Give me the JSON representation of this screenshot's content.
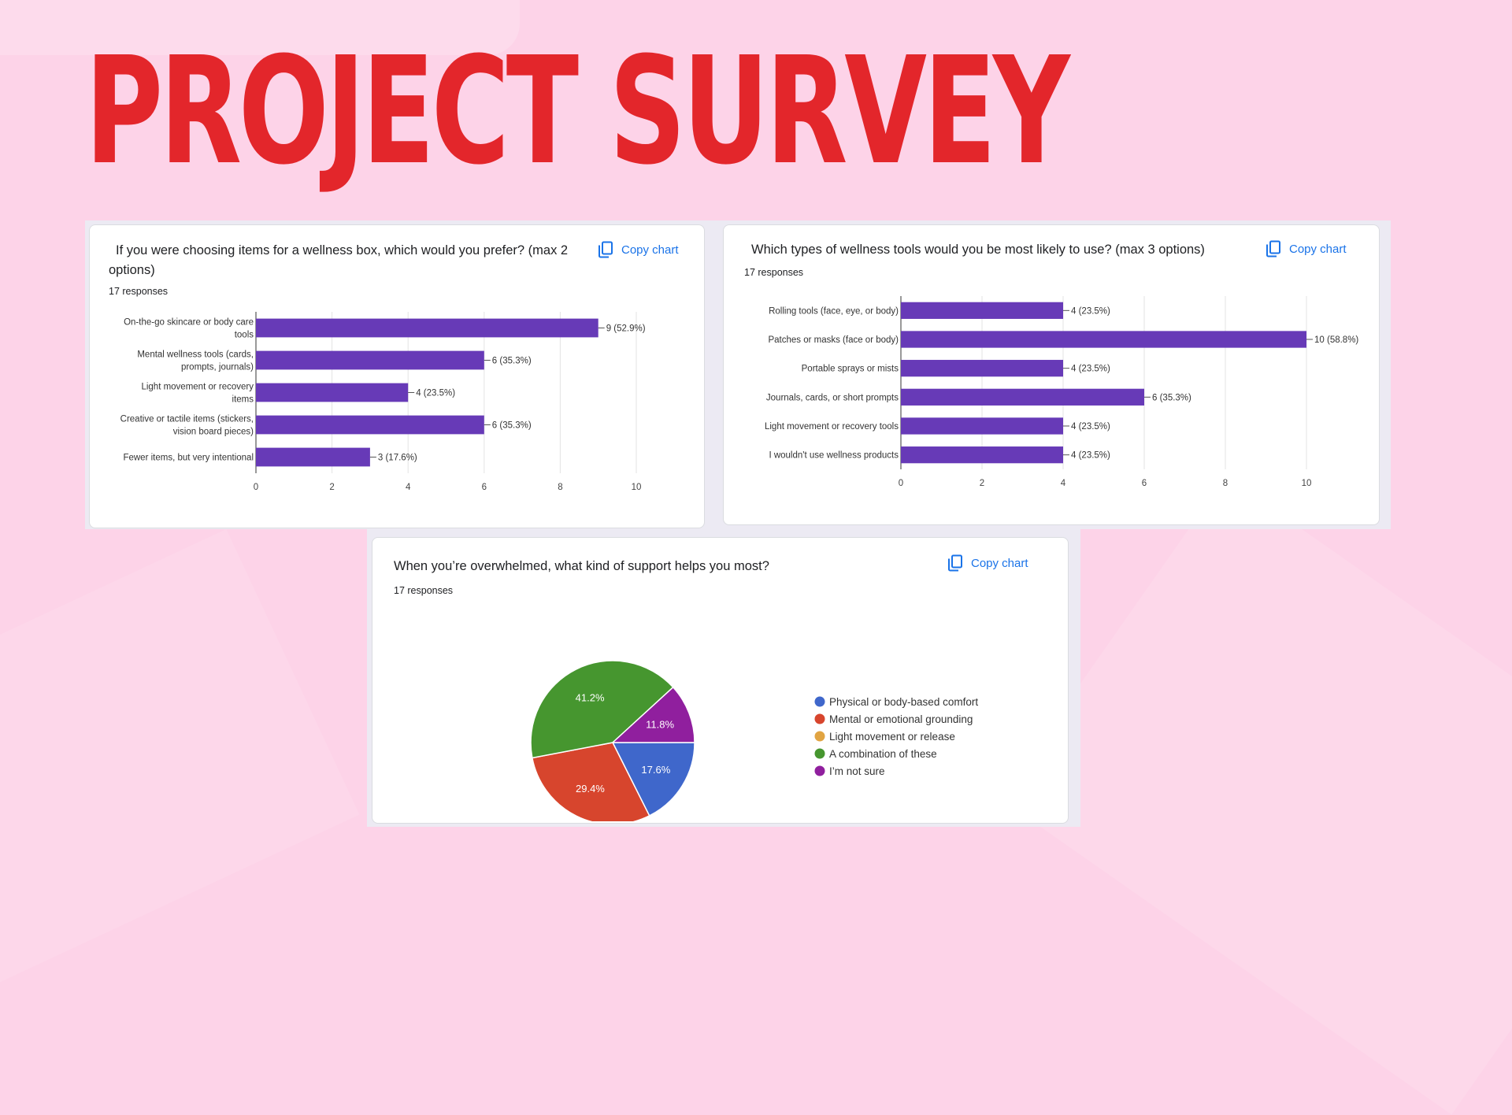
{
  "page": {
    "title": "PROJECT SURVEY"
  },
  "copy_label": "Copy chart",
  "colors": {
    "bar": "#673ab7",
    "title": "#e3262b",
    "link": "#1a73e8"
  },
  "chart_data": [
    {
      "type": "bar",
      "orientation": "horizontal",
      "title": "If you were choosing items for a wellness box, which would you prefer?  (max 2 options)",
      "responses": "17 responses",
      "categories": [
        [
          "On-the-go skincare or body care",
          "tools"
        ],
        [
          "Mental wellness tools (cards,",
          "prompts, journals)"
        ],
        [
          "Light movement or recovery",
          "items"
        ],
        [
          "Creative or tactile items (stickers,",
          "vision board pieces)"
        ],
        [
          "Fewer items, but very intentional"
        ]
      ],
      "values": [
        9,
        6,
        4,
        6,
        3
      ],
      "labels": [
        "9 (52.9%)",
        "6 (35.3%)",
        "4 (23.5%)",
        "6 (35.3%)",
        "3 (17.6%)"
      ],
      "xlim": [
        0,
        10
      ],
      "xticks": [
        0,
        2,
        4,
        6,
        8,
        10
      ],
      "grid": true
    },
    {
      "type": "bar",
      "orientation": "horizontal",
      "title": "Which types of wellness tools would you be most likely to use?  (max 3 options)",
      "responses": "17 responses",
      "categories": [
        [
          "Rolling tools (face, eye, or body)"
        ],
        [
          "Patches or masks (face or body)"
        ],
        [
          "Portable sprays or mists"
        ],
        [
          "Journals, cards, or short prompts"
        ],
        [
          "Light movement or recovery tools"
        ],
        [
          "I wouldn't use wellness products"
        ]
      ],
      "values": [
        4,
        10,
        4,
        6,
        4,
        4
      ],
      "labels": [
        "4 (23.5%)",
        "10 (58.8%)",
        "4 (23.5%)",
        "6 (35.3%)",
        "4 (23.5%)",
        "4 (23.5%)"
      ],
      "xlim": [
        0,
        10
      ],
      "xticks": [
        0,
        2,
        4,
        6,
        8,
        10
      ],
      "grid": true
    },
    {
      "type": "pie",
      "title": "When you’re overwhelmed, what kind of support helps you most?",
      "responses": "17 responses",
      "legend_position": "right",
      "slices": [
        {
          "name": "Physical or body-based comfort",
          "value": 17.6,
          "label": "17.6%",
          "color": "#3f67cb"
        },
        {
          "name": "Mental or emotional grounding",
          "value": 29.4,
          "label": "29.4%",
          "color": "#d7452d"
        },
        {
          "name": "Light movement or release",
          "value": 0,
          "label": "",
          "color": "#e1a442"
        },
        {
          "name": "A combination of these",
          "value": 41.2,
          "label": "41.2%",
          "color": "#46962f"
        },
        {
          "name": "I’m not sure",
          "value": 11.8,
          "label": "11.8%",
          "color": "#901f9e"
        }
      ]
    }
  ]
}
